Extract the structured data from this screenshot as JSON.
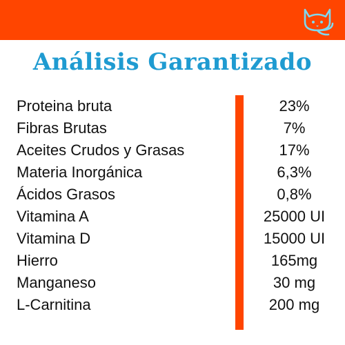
{
  "header": {
    "bar_color": "#ff4500",
    "logo_icon": "cat-logo-icon"
  },
  "title": "Análisis Garantizado",
  "table": {
    "rows": [
      {
        "label": "Proteina bruta",
        "value": "23%"
      },
      {
        "label": "Fibras Brutas",
        "value": "7%"
      },
      {
        "label": "Aceites Crudos y Grasas",
        "value": "17%"
      },
      {
        "label": "Materia Inorgánica",
        "value": "6,3%"
      },
      {
        "label": "Ácidos Grasos",
        "value": "0,8%"
      },
      {
        "label": "Vitamina A",
        "value": "25000 UI"
      },
      {
        "label": "Vitamina D",
        "value": "15000 UI"
      },
      {
        "label": "Hierro",
        "value": "165mg"
      },
      {
        "label": "Manganeso",
        "value": "30 mg"
      },
      {
        "label": "L-Carnitina",
        "value": "200 mg"
      }
    ]
  },
  "colors": {
    "accent": "#ff4500",
    "title": "#1f9bd1",
    "text": "#111111"
  }
}
